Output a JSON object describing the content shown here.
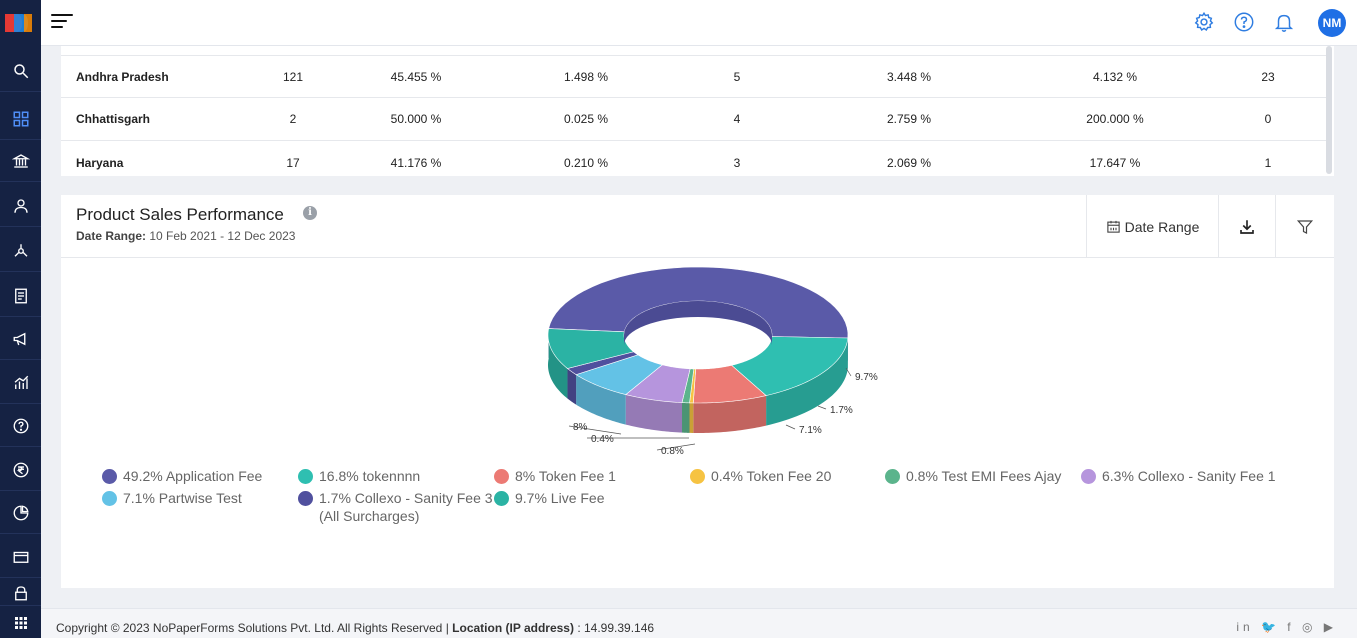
{
  "header": {
    "user_initials": "NM"
  },
  "table": {
    "rows": [
      {
        "state": "Andhra Pradesh",
        "c1": "121",
        "c2": "45.455 %",
        "c3": "1.498 %",
        "c4": "5",
        "c5": "3.448 %",
        "c6": "4.132 %",
        "c7": "23"
      },
      {
        "state": "Chhattisgarh",
        "c1": "2",
        "c2": "50.000 %",
        "c3": "0.025 %",
        "c4": "4",
        "c5": "2.759 %",
        "c6": "200.000 %",
        "c7": "0"
      },
      {
        "state": "Haryana",
        "c1": "17",
        "c2": "41.176 %",
        "c3": "0.210 %",
        "c4": "3",
        "c5": "2.069 %",
        "c6": "17.647 %",
        "c7": "1"
      }
    ]
  },
  "chart_panel": {
    "title": "Product Sales Performance",
    "info_glyph": "i",
    "date_range_label": "Date Range:",
    "date_range_value": "10 Feb 2021 - 12 Dec 2023",
    "date_range_button": "Date Range"
  },
  "chart_data": {
    "type": "pie",
    "style": "3d-donut",
    "slices": [
      {
        "label": "49.2% Application Fee",
        "value": 49.2,
        "color": "#5a5aa8"
      },
      {
        "label": "16.8% tokennnn",
        "value": 16.8,
        "color": "#2fbfb1"
      },
      {
        "label": "8% Token Fee 1",
        "value": 8.0,
        "color": "#ec7a74"
      },
      {
        "label": "0.4% Token Fee 20",
        "value": 0.4,
        "color": "#f6c342"
      },
      {
        "label": "0.8% Test EMI Fees Ajay",
        "value": 0.8,
        "color": "#5bb48c"
      },
      {
        "label": "6.3% Collexo - Sanity Fee 1",
        "value": 6.3,
        "color": "#b695dd"
      },
      {
        "label": "7.1% Partwise Test",
        "value": 7.1,
        "color": "#63c2e6"
      },
      {
        "label": "1.7% Collexo - Sanity Fee 3 (All Surcharges)",
        "value": 1.7,
        "color": "#50509e"
      },
      {
        "label": "9.7% Live Fee",
        "value": 9.7,
        "color": "#2bb3a4"
      }
    ],
    "data_labels": [
      "9.7%",
      "1.7%",
      "7.1%",
      "8%",
      "0.4%",
      "0.8%"
    ],
    "legend_position": "bottom"
  },
  "legend": {
    "items": [
      {
        "text": "49.2% Application Fee",
        "color": "#5a5aa8"
      },
      {
        "text": "16.8% tokennnn",
        "color": "#2fbfb1"
      },
      {
        "text": "8% Token Fee 1",
        "color": "#ec7a74"
      },
      {
        "text": "0.4% Token Fee 20",
        "color": "#f6c342"
      },
      {
        "text": "0.8% Test EMI Fees Ajay",
        "color": "#5bb48c"
      },
      {
        "text": "6.3% Collexo - Sanity Fee 1",
        "color": "#b695dd"
      },
      {
        "text": "7.1% Partwise Test",
        "color": "#63c2e6"
      },
      {
        "text": "1.7% Collexo - Sanity Fee 3",
        "text2": "(All Surcharges)",
        "color": "#50509e"
      },
      {
        "text": "9.7% Live Fee",
        "color": "#2bb3a4"
      }
    ]
  },
  "footer": {
    "copyright": "Copyright © 2023 NoPaperForms Solutions Pvt. Ltd. All Rights Reserved |",
    "location_label": "Location (IP address)",
    "location_value": ": 14.99.39.146",
    "social": "in 🐦 f ◎ ▶"
  }
}
